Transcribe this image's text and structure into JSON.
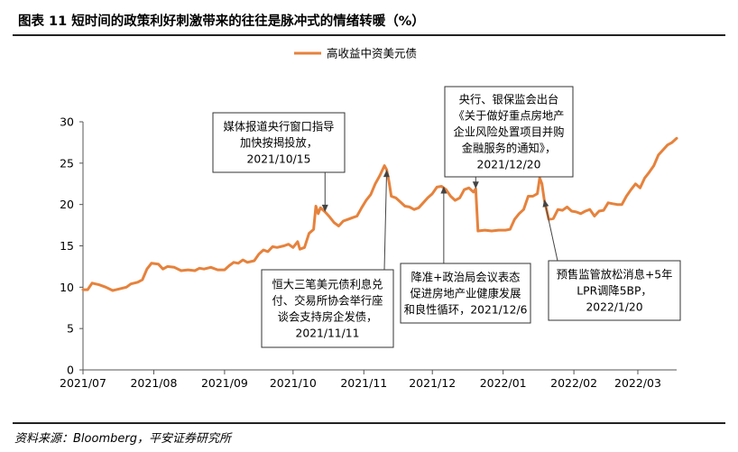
{
  "header": {
    "title": "图表 11   短时间的政策利好刺激带来的往往是脉冲式的情绪转暖（%）"
  },
  "footer": {
    "source": "资料来源：Bloomberg，平安证券研究所"
  },
  "chart_data": {
    "type": "line",
    "series": [
      {
        "name": "高收益中资美元债",
        "color": "#E6823C",
        "points": [
          [
            "2021-07-01",
            9.7
          ],
          [
            "2021-07-03",
            9.7
          ],
          [
            "2021-07-05",
            10.5
          ],
          [
            "2021-07-08",
            10.3
          ],
          [
            "2021-07-11",
            10.0
          ],
          [
            "2021-07-14",
            9.6
          ],
          [
            "2021-07-17",
            9.8
          ],
          [
            "2021-07-20",
            10.0
          ],
          [
            "2021-07-22",
            10.4
          ],
          [
            "2021-07-25",
            10.6
          ],
          [
            "2021-07-27",
            10.9
          ],
          [
            "2021-07-29",
            12.2
          ],
          [
            "2021-07-31",
            12.9
          ],
          [
            "2021-08-03",
            12.8
          ],
          [
            "2021-08-05",
            12.2
          ],
          [
            "2021-08-07",
            12.5
          ],
          [
            "2021-08-10",
            12.4
          ],
          [
            "2021-08-13",
            12.0
          ],
          [
            "2021-08-16",
            12.1
          ],
          [
            "2021-08-19",
            12.0
          ],
          [
            "2021-08-21",
            12.3
          ],
          [
            "2021-08-23",
            12.2
          ],
          [
            "2021-08-26",
            12.4
          ],
          [
            "2021-08-29",
            12.1
          ],
          [
            "2021-09-01",
            12.1
          ],
          [
            "2021-09-03",
            12.6
          ],
          [
            "2021-09-05",
            13.0
          ],
          [
            "2021-09-07",
            12.9
          ],
          [
            "2021-09-09",
            13.3
          ],
          [
            "2021-09-11",
            13.0
          ],
          [
            "2021-09-14",
            13.2
          ],
          [
            "2021-09-16",
            14.0
          ],
          [
            "2021-09-18",
            14.5
          ],
          [
            "2021-09-20",
            14.3
          ],
          [
            "2021-09-22",
            14.9
          ],
          [
            "2021-09-24",
            14.8
          ],
          [
            "2021-09-27",
            15.0
          ],
          [
            "2021-09-29",
            15.2
          ],
          [
            "2021-10-01",
            14.8
          ],
          [
            "2021-10-03",
            15.5
          ],
          [
            "2021-10-04",
            14.6
          ],
          [
            "2021-10-06",
            14.8
          ],
          [
            "2021-10-08",
            16.5
          ],
          [
            "2021-10-10",
            17.0
          ],
          [
            "2021-10-11",
            19.8
          ],
          [
            "2021-10-12",
            18.9
          ],
          [
            "2021-10-13",
            19.6
          ],
          [
            "2021-10-15",
            19.1
          ],
          [
            "2021-10-17",
            18.5
          ],
          [
            "2021-10-19",
            17.8
          ],
          [
            "2021-10-21",
            17.4
          ],
          [
            "2021-10-23",
            18.0
          ],
          [
            "2021-10-25",
            18.2
          ],
          [
            "2021-10-27",
            18.4
          ],
          [
            "2021-10-29",
            18.6
          ],
          [
            "2021-10-31",
            19.6
          ],
          [
            "2021-11-02",
            20.5
          ],
          [
            "2021-11-04",
            21.2
          ],
          [
            "2021-11-06",
            22.5
          ],
          [
            "2021-11-08",
            23.5
          ],
          [
            "2021-11-10",
            24.7
          ],
          [
            "2021-11-11",
            24.2
          ],
          [
            "2021-11-12",
            22.8
          ],
          [
            "2021-11-13",
            21.0
          ],
          [
            "2021-11-15",
            20.8
          ],
          [
            "2021-11-17",
            20.3
          ],
          [
            "2021-11-19",
            19.8
          ],
          [
            "2021-11-21",
            19.7
          ],
          [
            "2021-11-23",
            19.4
          ],
          [
            "2021-11-25",
            19.6
          ],
          [
            "2021-11-27",
            20.2
          ],
          [
            "2021-11-29",
            20.8
          ],
          [
            "2021-12-01",
            21.3
          ],
          [
            "2021-12-03",
            22.1
          ],
          [
            "2021-12-05",
            22.2
          ],
          [
            "2021-12-07",
            21.8
          ],
          [
            "2021-12-09",
            21.0
          ],
          [
            "2021-12-11",
            20.5
          ],
          [
            "2021-12-13",
            20.8
          ],
          [
            "2021-12-15",
            21.8
          ],
          [
            "2021-12-17",
            22.0
          ],
          [
            "2021-12-19",
            21.5
          ],
          [
            "2021-12-20",
            21.9
          ],
          [
            "2021-12-21",
            16.8
          ],
          [
            "2021-12-24",
            16.9
          ],
          [
            "2021-12-27",
            16.8
          ],
          [
            "2021-12-30",
            16.9
          ],
          [
            "2022-01-02",
            16.9
          ],
          [
            "2022-01-04",
            17.0
          ],
          [
            "2022-01-06",
            18.2
          ],
          [
            "2022-01-08",
            18.9
          ],
          [
            "2022-01-10",
            19.4
          ],
          [
            "2022-01-12",
            21.0
          ],
          [
            "2022-01-14",
            21.0
          ],
          [
            "2022-01-16",
            21.3
          ],
          [
            "2022-01-17",
            23.2
          ],
          [
            "2022-01-18",
            22.5
          ],
          [
            "2022-01-19",
            20.6
          ],
          [
            "2022-01-21",
            18.2
          ],
          [
            "2022-01-23",
            18.3
          ],
          [
            "2022-01-25",
            19.4
          ],
          [
            "2022-01-27",
            19.3
          ],
          [
            "2022-01-29",
            19.7
          ],
          [
            "2022-01-31",
            19.2
          ],
          [
            "2022-02-02",
            19.1
          ],
          [
            "2022-02-04",
            18.9
          ],
          [
            "2022-02-06",
            19.2
          ],
          [
            "2022-02-08",
            19.4
          ],
          [
            "2022-02-10",
            18.6
          ],
          [
            "2022-02-12",
            19.2
          ],
          [
            "2022-02-14",
            19.3
          ],
          [
            "2022-02-16",
            20.2
          ],
          [
            "2022-02-18",
            20.1
          ],
          [
            "2022-02-20",
            20.0
          ],
          [
            "2022-02-22",
            20.0
          ],
          [
            "2022-02-24",
            21.0
          ],
          [
            "2022-02-26",
            21.8
          ],
          [
            "2022-02-28",
            22.5
          ],
          [
            "2022-03-02",
            22.0
          ],
          [
            "2022-03-04",
            23.2
          ],
          [
            "2022-03-06",
            23.9
          ],
          [
            "2022-03-08",
            24.7
          ],
          [
            "2022-03-10",
            26.0
          ],
          [
            "2022-03-12",
            26.6
          ],
          [
            "2022-03-14",
            27.2
          ],
          [
            "2022-03-16",
            27.5
          ],
          [
            "2022-03-18",
            28.0
          ]
        ]
      }
    ],
    "xlim": [
      "2021-07-01",
      "2022-03-18"
    ],
    "x_ticks": [
      {
        "date": "2021-07-01",
        "label": "2021/07"
      },
      {
        "date": "2021-08-01",
        "label": "2021/08"
      },
      {
        "date": "2021-09-01",
        "label": "2021/09"
      },
      {
        "date": "2021-10-01",
        "label": "2021/10"
      },
      {
        "date": "2021-11-01",
        "label": "2021/11"
      },
      {
        "date": "2021-12-01",
        "label": "2021/12"
      },
      {
        "date": "2022-01-01",
        "label": "2022/01"
      },
      {
        "date": "2022-02-01",
        "label": "2022/02"
      },
      {
        "date": "2022-03-01",
        "label": "2022/03"
      }
    ],
    "ylim": [
      0,
      30
    ],
    "y_ticks": [
      0,
      5,
      10,
      15,
      20,
      25,
      30
    ],
    "grid": false,
    "legend_position": "top-center",
    "annotations": [
      {
        "lines": [
          "媒体报道央行窗口指导",
          "加快按揭投放，",
          "2021/10/15"
        ],
        "target": [
          "2021-10-15",
          19.1
        ]
      },
      {
        "lines": [
          "恒大三笔美元债利息兑",
          "付、交易所协会举行座",
          "谈会支持房企发债，",
          "2021/11/11"
        ],
        "target": [
          "2021-11-11",
          24.2
        ]
      },
      {
        "lines": [
          "央行、银保监会出台",
          "《关于做好重点房地产",
          "企业风险处置项目并购",
          "金融服务的通知》，",
          "2021/12/20"
        ],
        "target": [
          "2021-12-20",
          21.9
        ]
      },
      {
        "lines": [
          "降准+政治局会议表态",
          "促进房地产业健康发展",
          "和良性循环，2021/12/6"
        ],
        "target": [
          "2021-12-06",
          22.2
        ]
      },
      {
        "lines": [
          "预售监管放松消息+5年",
          "LPR调降5BP，",
          "2022/1/20"
        ],
        "target": [
          "2022-01-19",
          20.6
        ]
      }
    ]
  }
}
